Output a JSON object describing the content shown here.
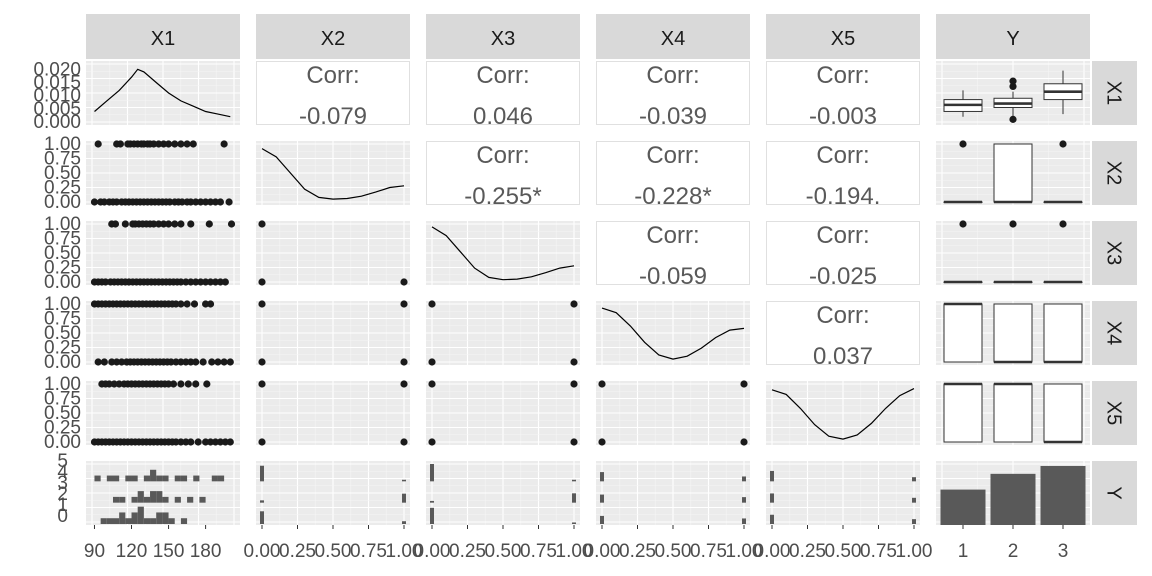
{
  "colors": {
    "panel_bg": "#ebebeb",
    "grid_major": "#ffffff",
    "grid_minor": "#f5f5f5",
    "strip_bg": "#d9d9d9",
    "point": "#1a1a1a",
    "bar": "#595959",
    "text": "#595959",
    "box_fill": "#ffffff",
    "box_line": "#333333"
  },
  "chart_data": {
    "type": "pairs",
    "variables": [
      "X1",
      "X2",
      "X3",
      "X4",
      "X5",
      "Y"
    ],
    "strips": {
      "top": [
        "X1",
        "X2",
        "X3",
        "X4",
        "X5",
        "Y"
      ],
      "right": [
        "X1",
        "X2",
        "X3",
        "X4",
        "X5",
        "Y"
      ]
    },
    "correlations": [
      {
        "row": "X1",
        "col": "X2",
        "label": "Corr:",
        "value": "-0.079"
      },
      {
        "row": "X1",
        "col": "X3",
        "label": "Corr:",
        "value": "0.046"
      },
      {
        "row": "X1",
        "col": "X4",
        "label": "Corr:",
        "value": "-0.039"
      },
      {
        "row": "X1",
        "col": "X5",
        "label": "Corr:",
        "value": "-0.003"
      },
      {
        "row": "X2",
        "col": "X3",
        "label": "Corr:",
        "value": "-0.255*"
      },
      {
        "row": "X2",
        "col": "X4",
        "label": "Corr:",
        "value": "-0.228*"
      },
      {
        "row": "X2",
        "col": "X5",
        "label": "Corr:",
        "value": "-0.194."
      },
      {
        "row": "X3",
        "col": "X4",
        "label": "Corr:",
        "value": "-0.059"
      },
      {
        "row": "X3",
        "col": "X5",
        "label": "Corr:",
        "value": "-0.025"
      },
      {
        "row": "X4",
        "col": "X5",
        "label": "Corr:",
        "value": "0.037"
      }
    ],
    "density_x1": {
      "x": [
        90,
        100,
        110,
        120,
        125,
        130,
        140,
        150,
        160,
        170,
        180,
        190,
        200
      ],
      "y": [
        0.004,
        0.008,
        0.012,
        0.017,
        0.02,
        0.019,
        0.015,
        0.011,
        0.008,
        0.006,
        0.004,
        0.003,
        0.002
      ],
      "yticks": [
        "0.020",
        "0.015",
        "0.010",
        "0.005",
        "0.000"
      ],
      "ylim": [
        0,
        0.022
      ]
    },
    "density_binary": {
      "X2": {
        "x": [
          0,
          0.1,
          0.2,
          0.3,
          0.4,
          0.5,
          0.6,
          0.7,
          0.8,
          0.9,
          1.0
        ],
        "y": [
          0.92,
          0.78,
          0.5,
          0.22,
          0.08,
          0.05,
          0.06,
          0.1,
          0.17,
          0.25,
          0.28
        ]
      },
      "X3": {
        "x": [
          0,
          0.1,
          0.2,
          0.3,
          0.4,
          0.5,
          0.6,
          0.7,
          0.8,
          0.9,
          1.0
        ],
        "y": [
          0.95,
          0.8,
          0.52,
          0.24,
          0.08,
          0.04,
          0.05,
          0.09,
          0.16,
          0.24,
          0.28
        ]
      },
      "X4": {
        "x": [
          0,
          0.1,
          0.2,
          0.3,
          0.4,
          0.5,
          0.6,
          0.7,
          0.8,
          0.9,
          1.0
        ],
        "y": [
          0.93,
          0.85,
          0.62,
          0.34,
          0.12,
          0.05,
          0.1,
          0.24,
          0.42,
          0.55,
          0.58
        ]
      },
      "X5": {
        "x": [
          0,
          0.1,
          0.2,
          0.3,
          0.4,
          0.5,
          0.6,
          0.7,
          0.8,
          0.9,
          1.0
        ],
        "y": [
          0.9,
          0.82,
          0.58,
          0.3,
          0.1,
          0.05,
          0.12,
          0.32,
          0.58,
          0.8,
          0.92
        ]
      }
    },
    "binary_yticks": [
      "1.00",
      "0.75",
      "0.50",
      "0.25",
      "0.00"
    ],
    "binary_xticks": [
      "0.00",
      "0.25",
      "0.50",
      "0.75",
      "1.00"
    ],
    "x1_xticks": [
      "90",
      "120",
      "150",
      "180"
    ],
    "x1_xrange": [
      88,
      203
    ],
    "y_xticks": [
      "1",
      "2",
      "3"
    ],
    "y_hist_yticks": [
      "5",
      "4",
      "3",
      "2",
      "1",
      "0"
    ],
    "scatter_x1": {
      "X2": {
        "one": [
          93,
          108,
          111,
          117,
          119,
          122,
          125,
          128,
          130,
          133,
          135,
          138,
          142,
          146,
          150,
          155,
          160,
          165,
          170,
          195
        ],
        "zero": [
          90,
          95,
          98,
          102,
          105,
          108,
          112,
          115,
          118,
          121,
          124,
          127,
          130,
          133,
          136,
          139,
          142,
          145,
          148,
          151,
          155,
          158,
          161,
          165,
          168,
          172,
          176,
          180,
          184,
          188,
          192,
          199
        ]
      },
      "X3": {
        "one": [
          104,
          107,
          115,
          121,
          123,
          126,
          129,
          132,
          135,
          138,
          142,
          146,
          150,
          155,
          160,
          168,
          183,
          201
        ],
        "zero": [
          90,
          93,
          96,
          99,
          103,
          106,
          109,
          112,
          115,
          118,
          121,
          124,
          127,
          130,
          133,
          136,
          139,
          142,
          145,
          148,
          151,
          154,
          157,
          160,
          164,
          168,
          172,
          176,
          180,
          184,
          188,
          192,
          196
        ]
      },
      "X4": {
        "one": [
          90,
          93,
          96,
          99,
          102,
          105,
          108,
          111,
          114,
          117,
          120,
          123,
          126,
          129,
          132,
          135,
          138,
          141,
          144,
          147,
          150,
          153,
          156,
          160,
          165,
          171,
          180,
          184
        ],
        "zero": [
          93,
          98,
          104,
          108,
          112,
          116,
          119,
          122,
          125,
          128,
          131,
          134,
          137,
          140,
          143,
          146,
          149,
          152,
          156,
          160,
          164,
          168,
          172,
          178,
          185,
          190,
          195,
          200
        ]
      },
      "X5": {
        "one": [
          96,
          99,
          102,
          106,
          110,
          114,
          117,
          120,
          123,
          126,
          129,
          132,
          135,
          138,
          141,
          144,
          147,
          150,
          154,
          160,
          166,
          172,
          181
        ],
        "zero": [
          90,
          93,
          96,
          99,
          102,
          105,
          108,
          111,
          114,
          117,
          120,
          123,
          126,
          129,
          132,
          135,
          138,
          141,
          144,
          147,
          150,
          153,
          156,
          160,
          164,
          168,
          174,
          180,
          184,
          188,
          192,
          196,
          200
        ]
      }
    },
    "binary_pairs_corners": [
      {
        "row": "X3",
        "col": "X2",
        "points": [
          [
            0,
            1
          ],
          [
            0,
            0
          ],
          [
            1,
            0
          ]
        ]
      },
      {
        "row": "X4",
        "col": "X2",
        "points": [
          [
            0,
            1
          ],
          [
            1,
            1
          ],
          [
            0,
            0
          ],
          [
            1,
            0
          ]
        ]
      },
      {
        "row": "X4",
        "col": "X3",
        "points": [
          [
            0,
            1
          ],
          [
            1,
            1
          ],
          [
            0,
            0
          ],
          [
            1,
            0
          ]
        ]
      },
      {
        "row": "X5",
        "col": "X2",
        "points": [
          [
            0,
            1
          ],
          [
            1,
            1
          ],
          [
            0,
            0
          ],
          [
            1,
            0
          ]
        ]
      },
      {
        "row": "X5",
        "col": "X3",
        "points": [
          [
            0,
            1
          ],
          [
            1,
            1
          ],
          [
            0,
            0
          ],
          [
            1,
            0
          ]
        ]
      },
      {
        "row": "X5",
        "col": "X4",
        "points": [
          [
            0,
            1
          ],
          [
            1,
            1
          ],
          [
            0,
            0
          ],
          [
            1,
            0
          ]
        ]
      }
    ],
    "box_x1_by_y": [
      {
        "group": "1",
        "q1": 0.004,
        "median": 0.0065,
        "q3": 0.0085,
        "lo": 0.002,
        "hi": 0.012,
        "outliers": []
      },
      {
        "group": "2",
        "q1": 0.0055,
        "median": 0.007,
        "q3": 0.009,
        "lo": 0.0015,
        "hi": 0.0115,
        "outliers": [
          0.0135,
          0.0155,
          0.001
        ]
      },
      {
        "group": "3",
        "q1": 0.0085,
        "median": 0.0115,
        "q3": 0.0145,
        "lo": 0.003,
        "hi": 0.0195,
        "outliers": []
      }
    ],
    "box_binary_by_y": {
      "X2": [
        {
          "group": "1",
          "q1": 0,
          "median": 0,
          "q3": 0,
          "lo": 0,
          "hi": 0,
          "outliers": [
            1
          ]
        },
        {
          "group": "2",
          "q1": 0,
          "median": 0,
          "q3": 1,
          "lo": 0,
          "hi": 1,
          "outliers": []
        },
        {
          "group": "3",
          "q1": 0,
          "median": 0,
          "q3": 0,
          "lo": 0,
          "hi": 0,
          "outliers": [
            1
          ]
        }
      ],
      "X3": [
        {
          "group": "1",
          "q1": 0,
          "median": 0,
          "q3": 0,
          "lo": 0,
          "hi": 0,
          "outliers": [
            1
          ]
        },
        {
          "group": "2",
          "q1": 0,
          "median": 0,
          "q3": 0,
          "lo": 0,
          "hi": 0,
          "outliers": [
            1
          ]
        },
        {
          "group": "3",
          "q1": 0,
          "median": 0,
          "q3": 0,
          "lo": 0,
          "hi": 0,
          "outliers": [
            1
          ]
        }
      ],
      "X4": [
        {
          "group": "1",
          "q1": 0,
          "median": 1,
          "q3": 1,
          "lo": 0,
          "hi": 1,
          "outliers": []
        },
        {
          "group": "2",
          "q1": 0,
          "median": 0,
          "q3": 1,
          "lo": 0,
          "hi": 1,
          "outliers": []
        },
        {
          "group": "3",
          "q1": 0,
          "median": 0,
          "q3": 1,
          "lo": 0,
          "hi": 1,
          "outliers": []
        }
      ],
      "X5": [
        {
          "group": "1",
          "q1": 0,
          "median": 1,
          "q3": 1,
          "lo": 0,
          "hi": 1,
          "outliers": []
        },
        {
          "group": "2",
          "q1": 0,
          "median": 1,
          "q3": 1,
          "lo": 0,
          "hi": 1,
          "outliers": []
        },
        {
          "group": "3",
          "q1": 0,
          "median": 0,
          "q3": 1,
          "lo": 0,
          "hi": 1,
          "outliers": []
        }
      ]
    },
    "y_bar_counts": {
      "categories": [
        "1",
        "2",
        "3"
      ],
      "values": [
        18,
        26,
        30
      ],
      "ylim": [
        0,
        31
      ]
    },
    "y_hist_x1": {
      "bins_start": [
        90,
        95,
        100,
        105,
        110,
        115,
        120,
        125,
        130,
        135,
        140,
        145,
        150,
        155,
        160,
        165,
        170,
        175,
        180,
        185,
        190,
        195
      ],
      "group1": [
        1,
        0,
        1,
        1,
        0,
        1,
        1,
        0,
        1,
        2,
        1,
        1,
        0,
        1,
        1,
        0,
        1,
        0,
        0,
        1,
        1,
        0
      ],
      "group2": [
        0,
        0,
        0,
        1,
        1,
        0,
        1,
        2,
        1,
        2,
        2,
        1,
        0,
        1,
        0,
        1,
        0,
        1,
        0,
        0,
        0,
        0
      ],
      "group3": [
        0,
        1,
        1,
        1,
        2,
        1,
        2,
        3,
        1,
        1,
        2,
        2,
        1,
        0,
        1,
        0,
        0,
        0,
        0,
        0,
        0,
        0
      ]
    },
    "y_spikes": {
      "X2": [
        27,
        4,
        22
      ],
      "X3": [
        30,
        3,
        28
      ],
      "X4": [
        16,
        14,
        14
      ],
      "X5": [
        18,
        16,
        16
      ]
    }
  }
}
